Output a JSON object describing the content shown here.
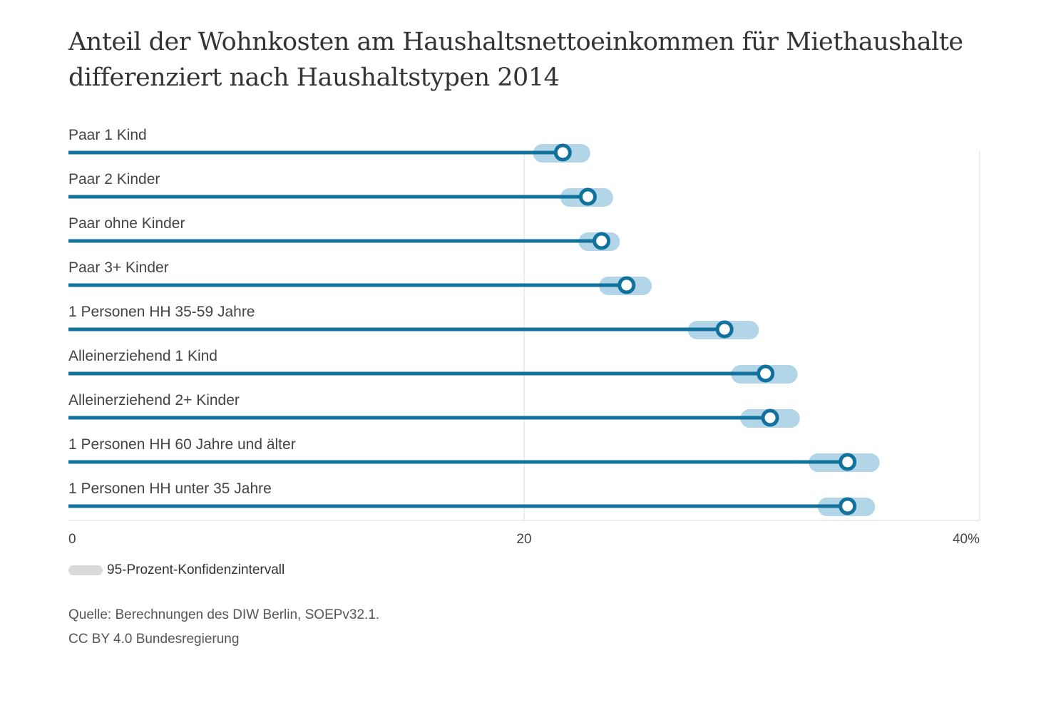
{
  "title_lines": [
    "Anteil der Wohnkosten am Haushaltsnettoeinkommen für Miethaushalte",
    "differenziert nach Haushaltstypen 2014"
  ],
  "legend": {
    "label": "95-Prozent-Konfidenzintervall",
    "swatch_color": "#d9d9d9"
  },
  "source": {
    "line1": "Quelle: Berechnungen des DIW Berlin, SOEPv32.1.",
    "line2": "CC BY 4.0 Bundesregierung"
  },
  "colors": {
    "line": "#12729e",
    "ci": "#b2d6e7",
    "grid": "#dddddd",
    "label": "#444444",
    "tick": "#444444"
  },
  "chart_data": {
    "type": "dot-range",
    "xlim": [
      0,
      40
    ],
    "xticks": [
      {
        "value": 0,
        "label": "0"
      },
      {
        "value": 20,
        "label": "20"
      },
      {
        "value": 40,
        "label": "40%"
      }
    ],
    "grid": true,
    "categories": [
      "Paar 1 Kind",
      "Paar 2 Kinder",
      "Paar ohne Kinder",
      "Paar 3+ Kinder",
      "1 Personen HH 35-59 Jahre",
      "Alleinerziehend 1 Kind",
      "Alleinerziehend 2+ Kinder",
      "1 Personen HH 60 Jahre und älter",
      "1 Personen HH unter 35 Jahre"
    ],
    "values": [
      21.7,
      22.8,
      23.4,
      24.5,
      28.8,
      30.6,
      30.8,
      34.2,
      34.2
    ],
    "ci_low": [
      20.8,
      22.0,
      22.8,
      23.7,
      27.6,
      29.5,
      29.9,
      32.9,
      33.3
    ],
    "ci_high": [
      22.5,
      23.5,
      23.8,
      25.2,
      29.9,
      31.6,
      31.7,
      35.2,
      35.0
    ]
  }
}
